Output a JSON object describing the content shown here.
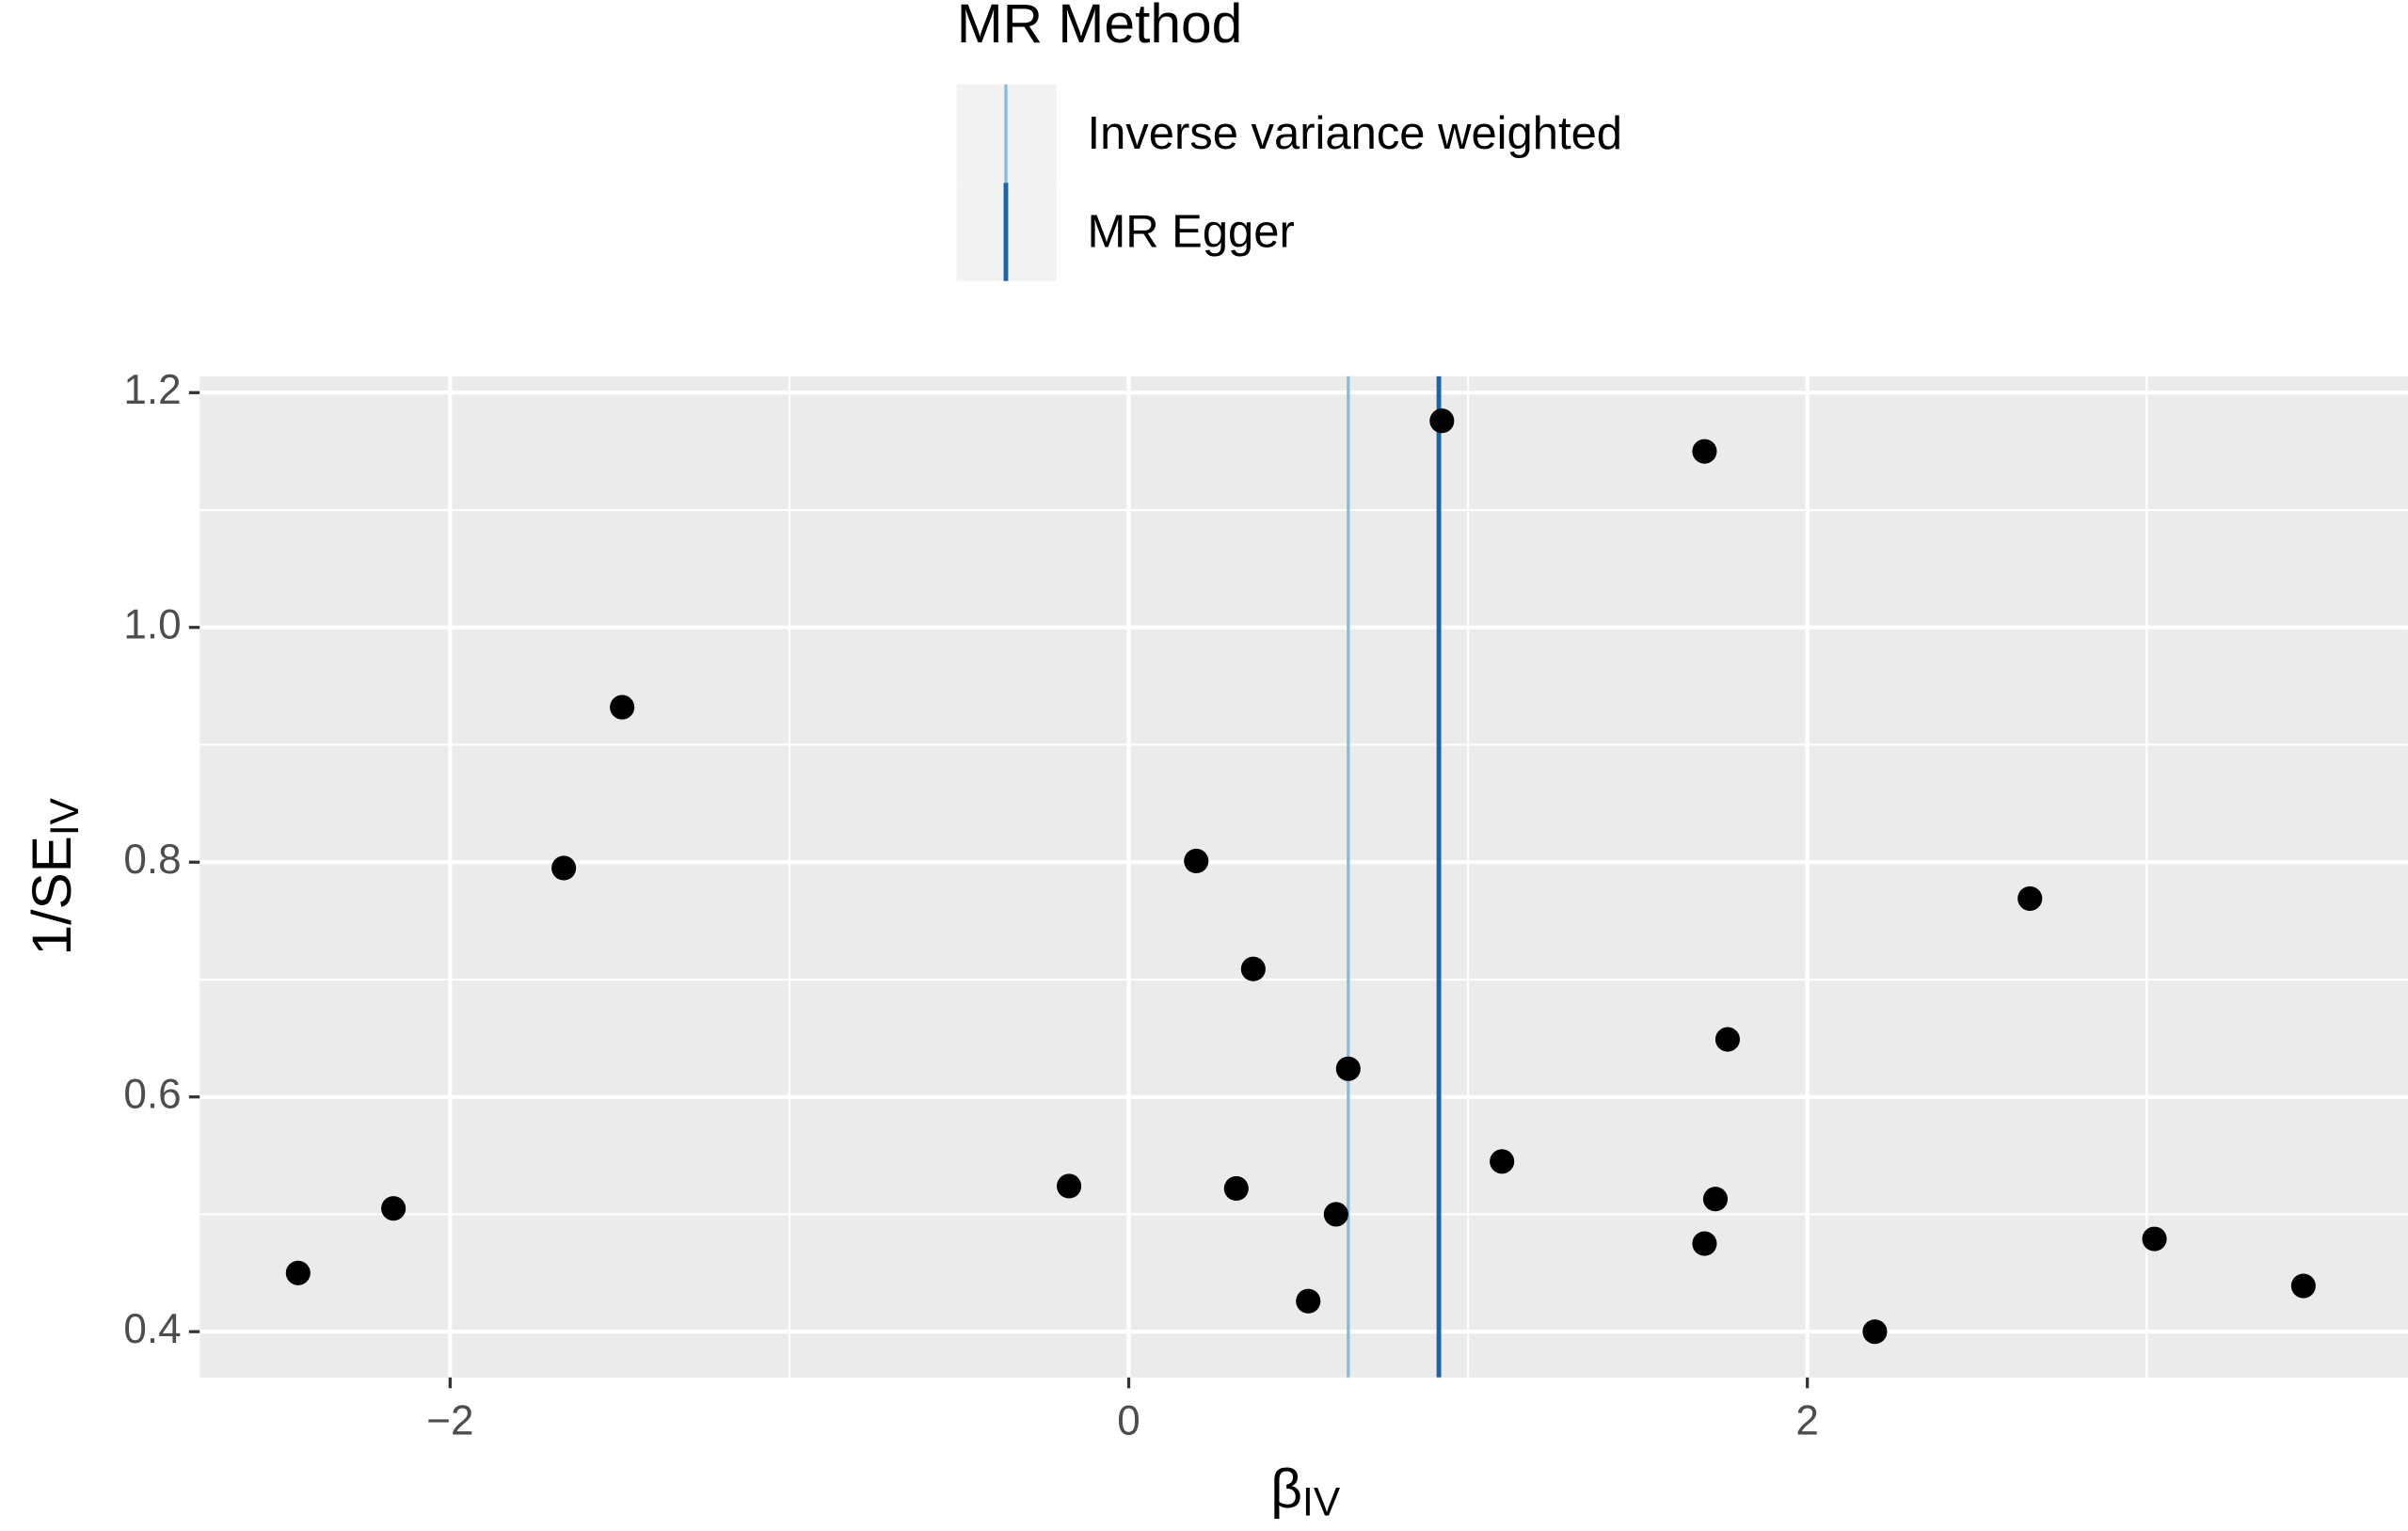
{
  "chart_data": {
    "type": "scatter",
    "x_label": {
      "main": "β",
      "sub": "IV"
    },
    "y_label": {
      "main": "1/SE",
      "sub": "IV"
    },
    "legend": {
      "title": "MR Method",
      "position": "top"
    },
    "lines": [
      {
        "name": "Inverse variance weighted",
        "color": "#86bbdf",
        "x": 0.647
      },
      {
        "name": "MR Egger",
        "color": "#1a64a8",
        "x": 0.914
      }
    ],
    "point_color": "#000000",
    "x": [
      -2.448,
      -2.167,
      -1.665,
      -1.493,
      -0.176,
      0.199,
      0.317,
      0.367,
      0.529,
      0.611,
      0.647,
      0.923,
      1.1,
      1.697,
      1.697,
      1.729,
      1.765,
      2.199,
      2.656,
      3.023,
      3.462
    ],
    "values": [
      0.45,
      0.505,
      0.795,
      0.932,
      0.524,
      0.801,
      0.522,
      0.709,
      0.426,
      0.5,
      0.624,
      1.176,
      0.545,
      1.15,
      0.475,
      0.513,
      0.649,
      0.4,
      0.769,
      0.479,
      0.439
    ],
    "xlim": [
      -2.738,
      3.77
    ],
    "ylim": [
      0.361,
      1.214
    ],
    "xticks": [
      {
        "value": -2,
        "label": "−2"
      },
      0,
      2
    ],
    "yticks": [
      0.4,
      0.6,
      0.8,
      {
        "value": 1.0,
        "label": "1.0"
      },
      1.2
    ],
    "x_minor_ticks": [
      -1,
      1,
      3
    ],
    "y_minor_ticks": [
      0.5,
      0.7,
      0.9,
      1.1
    ],
    "grid": true
  }
}
